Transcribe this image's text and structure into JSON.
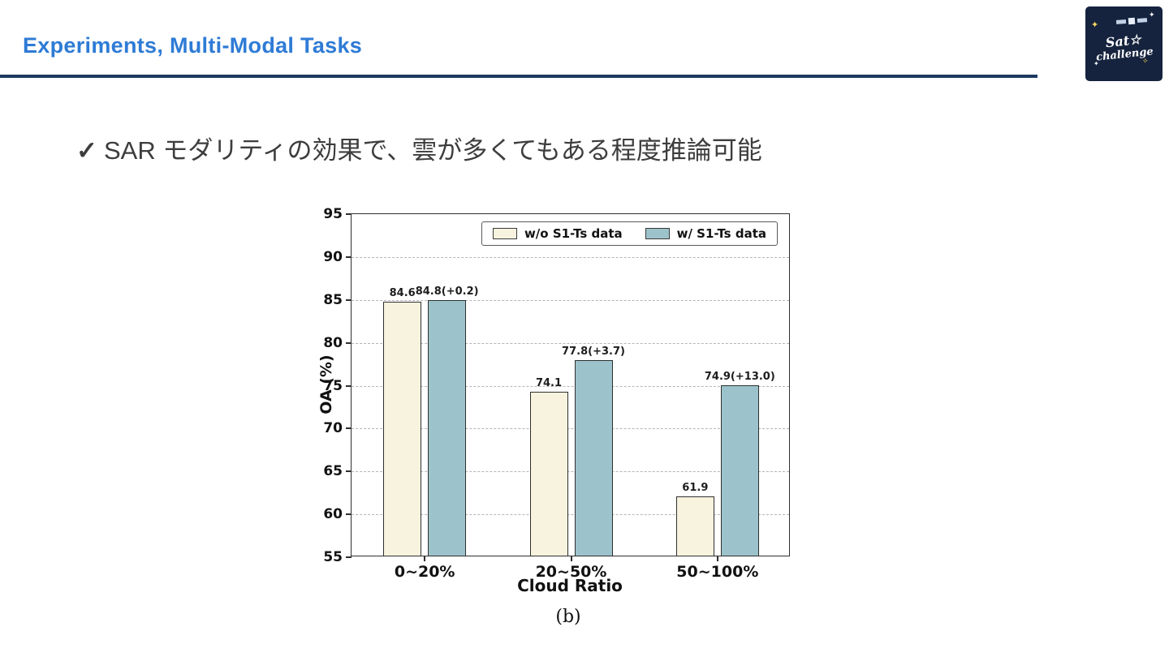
{
  "slide": {
    "header": {
      "title": "Experiments, Multi-Modal Tasks",
      "accent_color": "#2e7bd6",
      "rule_color": "#1d3a60"
    },
    "logo": {
      "bg_color": "#15233e",
      "script_top": "Sat☆",
      "script_bottom": "challenge"
    },
    "bullet": {
      "check": "✓",
      "text": "SAR モダリティの効果で、雲が多くてもある程度推論可能"
    }
  },
  "chart_data": {
    "type": "bar",
    "title": "",
    "xlabel": "Cloud Ratio",
    "ylabel": "OA (%)",
    "caption": "(b)",
    "categories": [
      "0~20%",
      "20~50%",
      "50~100%"
    ],
    "series": [
      {
        "name": "w/o S1-Ts data",
        "color": "#f7f3de",
        "values": [
          84.6,
          74.1,
          61.9
        ],
        "labels": [
          "84.6",
          "74.1",
          "61.9"
        ]
      },
      {
        "name": "w/ S1-Ts data",
        "color": "#9cc3cb",
        "values": [
          84.8,
          77.8,
          74.9
        ],
        "labels": [
          "84.8(+0.2)",
          "77.8(+3.7)",
          "74.9(+13.0)"
        ]
      }
    ],
    "ylim": [
      55,
      95
    ],
    "yticks": [
      55,
      60,
      65,
      70,
      75,
      80,
      85,
      90,
      95
    ],
    "grid": true,
    "grid_style": "dashed",
    "legend_position": "upper-right-inside",
    "bar_edge_color": "#2f2f2f"
  }
}
